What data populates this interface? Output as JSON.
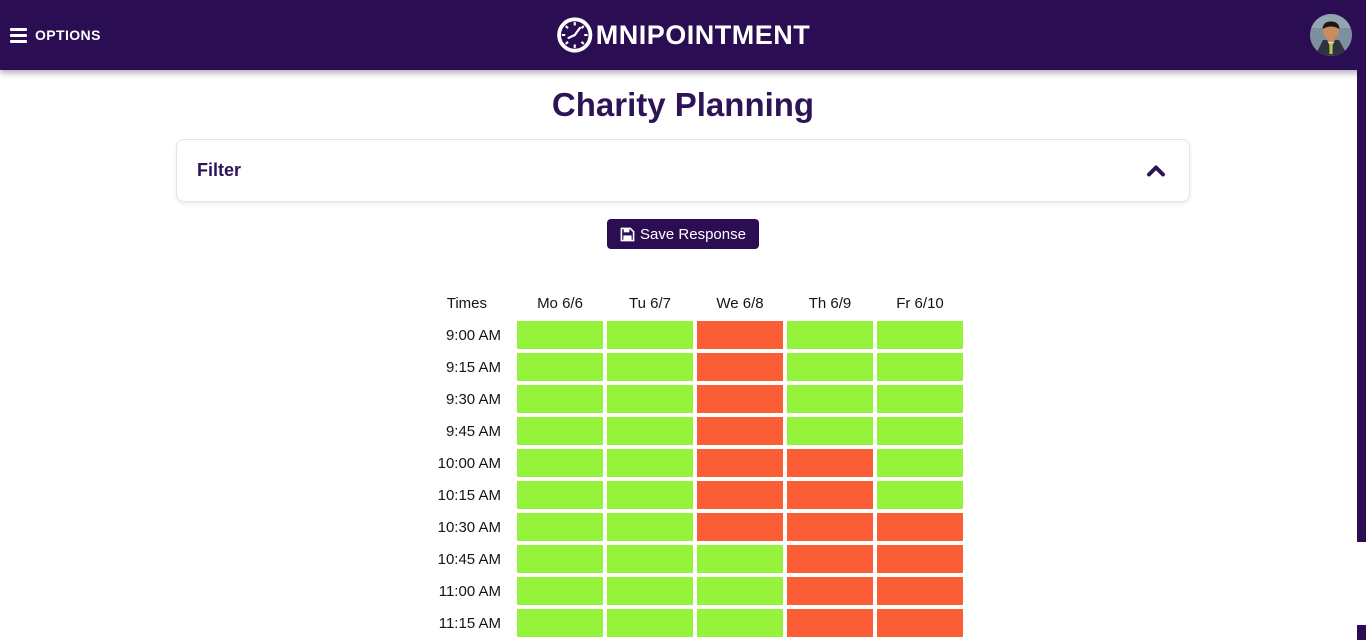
{
  "colors": {
    "brand": "#2b0d54",
    "available": "#96f33c",
    "unavailable": "#fb5e37",
    "title_text": "#2e1457"
  },
  "header": {
    "options_label": "OPTIONS",
    "logo_text": "MNIPOINTMENT"
  },
  "page": {
    "title": "Charity Planning"
  },
  "filter": {
    "label": "Filter"
  },
  "actions": {
    "save_label": "Save Response"
  },
  "schedule": {
    "times_header": "Times",
    "days": [
      "Mo 6/6",
      "Tu 6/7",
      "We 6/8",
      "Th 6/9",
      "Fr 6/10"
    ],
    "rows": [
      {
        "time": "9:00 AM",
        "availability": [
          1,
          1,
          0,
          1,
          1
        ]
      },
      {
        "time": "9:15 AM",
        "availability": [
          1,
          1,
          0,
          1,
          1
        ]
      },
      {
        "time": "9:30 AM",
        "availability": [
          1,
          1,
          0,
          1,
          1
        ]
      },
      {
        "time": "9:45 AM",
        "availability": [
          1,
          1,
          0,
          1,
          1
        ]
      },
      {
        "time": "10:00 AM",
        "availability": [
          1,
          1,
          0,
          0,
          1
        ]
      },
      {
        "time": "10:15 AM",
        "availability": [
          1,
          1,
          0,
          0,
          1
        ]
      },
      {
        "time": "10:30 AM",
        "availability": [
          1,
          1,
          0,
          0,
          0
        ]
      },
      {
        "time": "10:45 AM",
        "availability": [
          1,
          1,
          1,
          0,
          0
        ]
      },
      {
        "time": "11:00 AM",
        "availability": [
          1,
          1,
          1,
          0,
          0
        ]
      },
      {
        "time": "11:15 AM",
        "availability": [
          1,
          1,
          1,
          0,
          0
        ]
      }
    ]
  }
}
